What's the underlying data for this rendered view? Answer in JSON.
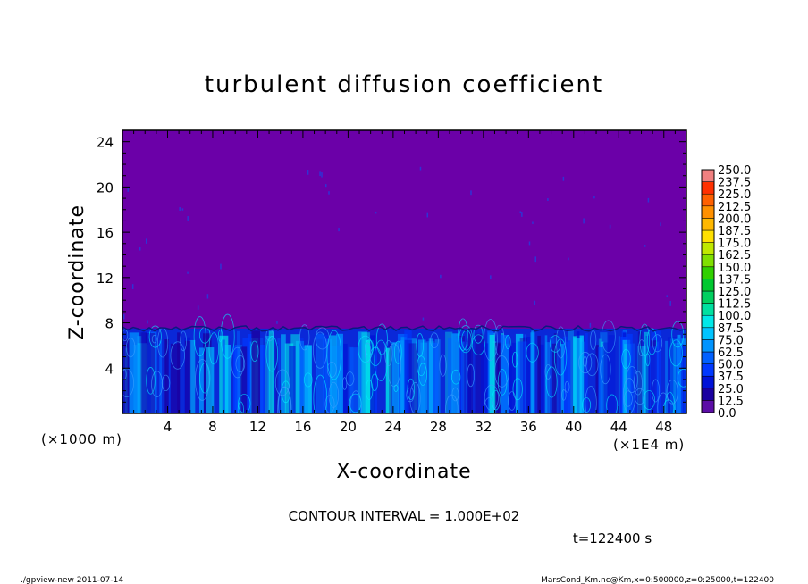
{
  "chart_data": {
    "type": "heatmap",
    "title": "turbulent diffusion coefficient",
    "xlabel": "X-coordinate",
    "ylabel": "Z-coordinate",
    "x_scale_label": "(×1E4 m)",
    "y_scale_label": "(×1000 m)",
    "x_ticks": [
      "4",
      "8",
      "12",
      "16",
      "20",
      "24",
      "28",
      "32",
      "36",
      "40",
      "44",
      "48"
    ],
    "y_ticks": [
      "4",
      "8",
      "12",
      "16",
      "20",
      "24"
    ],
    "xlim": [
      0,
      50
    ],
    "ylim": [
      0,
      25
    ],
    "colorbar_levels": [
      "0.0",
      "12.5",
      "25.0",
      "37.5",
      "50.0",
      "62.5",
      "75.0",
      "87.5",
      "100.0",
      "112.5",
      "125.0",
      "137.5",
      "150.0",
      "162.5",
      "175.0",
      "187.5",
      "200.0",
      "212.5",
      "225.0",
      "237.5",
      "250.0"
    ],
    "colorbar_colors": [
      "#5c0ea6",
      "#1a00a0",
      "#0012d8",
      "#0038ff",
      "#0060ff",
      "#0094ff",
      "#00c4ff",
      "#00e8e8",
      "#00e0a0",
      "#00d060",
      "#00c830",
      "#30d000",
      "#80e000",
      "#c0e800",
      "#ffe000",
      "#ffb800",
      "#ff9000",
      "#ff6000",
      "#ff3000",
      "#f08080"
    ],
    "background_color": "#6b00a8",
    "turbulent_layer_top": 7.5,
    "contour_interval": "CONTOUR INTERVAL = 1.000E+02",
    "time_label": "t=122400 s"
  },
  "footer": {
    "left": "./gpview-new  2011-07-14",
    "right": "MarsCond_Km.nc@Km,x=0:500000,z=0:25000,t=122400"
  }
}
